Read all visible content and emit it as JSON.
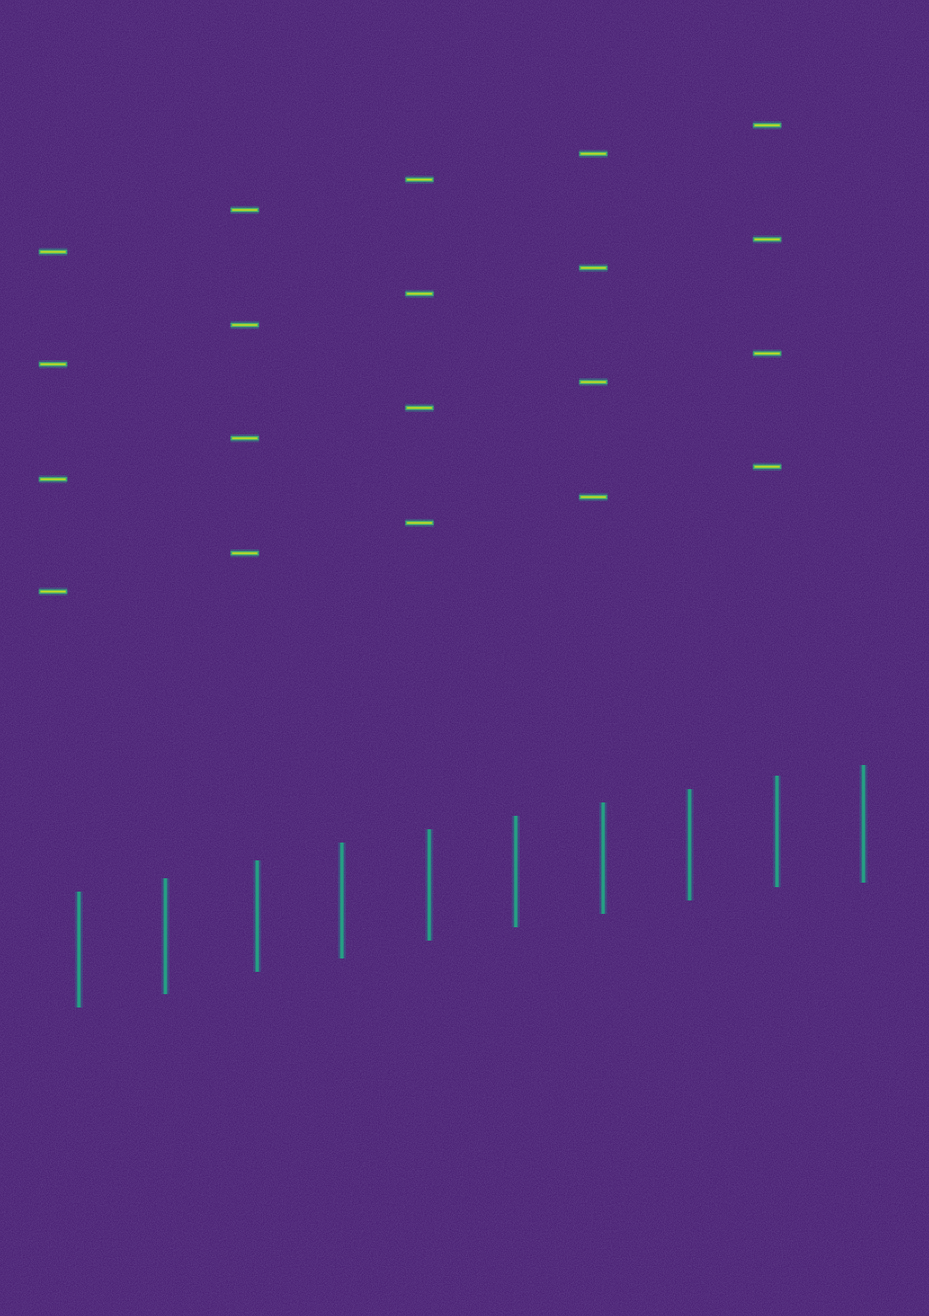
{
  "chart_data": {
    "type": "spectrogram",
    "tick_labels": false,
    "xlim": [
      0,
      1042
    ],
    "ylim": [
      1476,
      0
    ],
    "marks": [
      {
        "type": "dash",
        "color": "#c6e021",
        "x": [
          59,
          59,
          59,
          59,
          274,
          274,
          274,
          274,
          470,
          470,
          470,
          470,
          665,
          665,
          665,
          665,
          860,
          860,
          860,
          860
        ],
        "y": [
          282,
          408,
          537,
          663,
          235,
          364,
          491,
          620,
          201,
          329,
          457,
          586,
          172,
          300,
          428,
          557,
          140,
          268,
          396,
          523
        ]
      },
      {
        "type": "streak",
        "color": "#22a884",
        "x": [
          88,
          185,
          288,
          383,
          481,
          578,
          676,
          773,
          871,
          968
        ],
        "y1": [
          1000,
          985,
          965,
          945,
          930,
          915,
          900,
          885,
          870,
          858
        ],
        "y2": [
          1130,
          1115,
          1090,
          1075,
          1055,
          1040,
          1025,
          1010,
          995,
          990
        ]
      }
    ]
  }
}
